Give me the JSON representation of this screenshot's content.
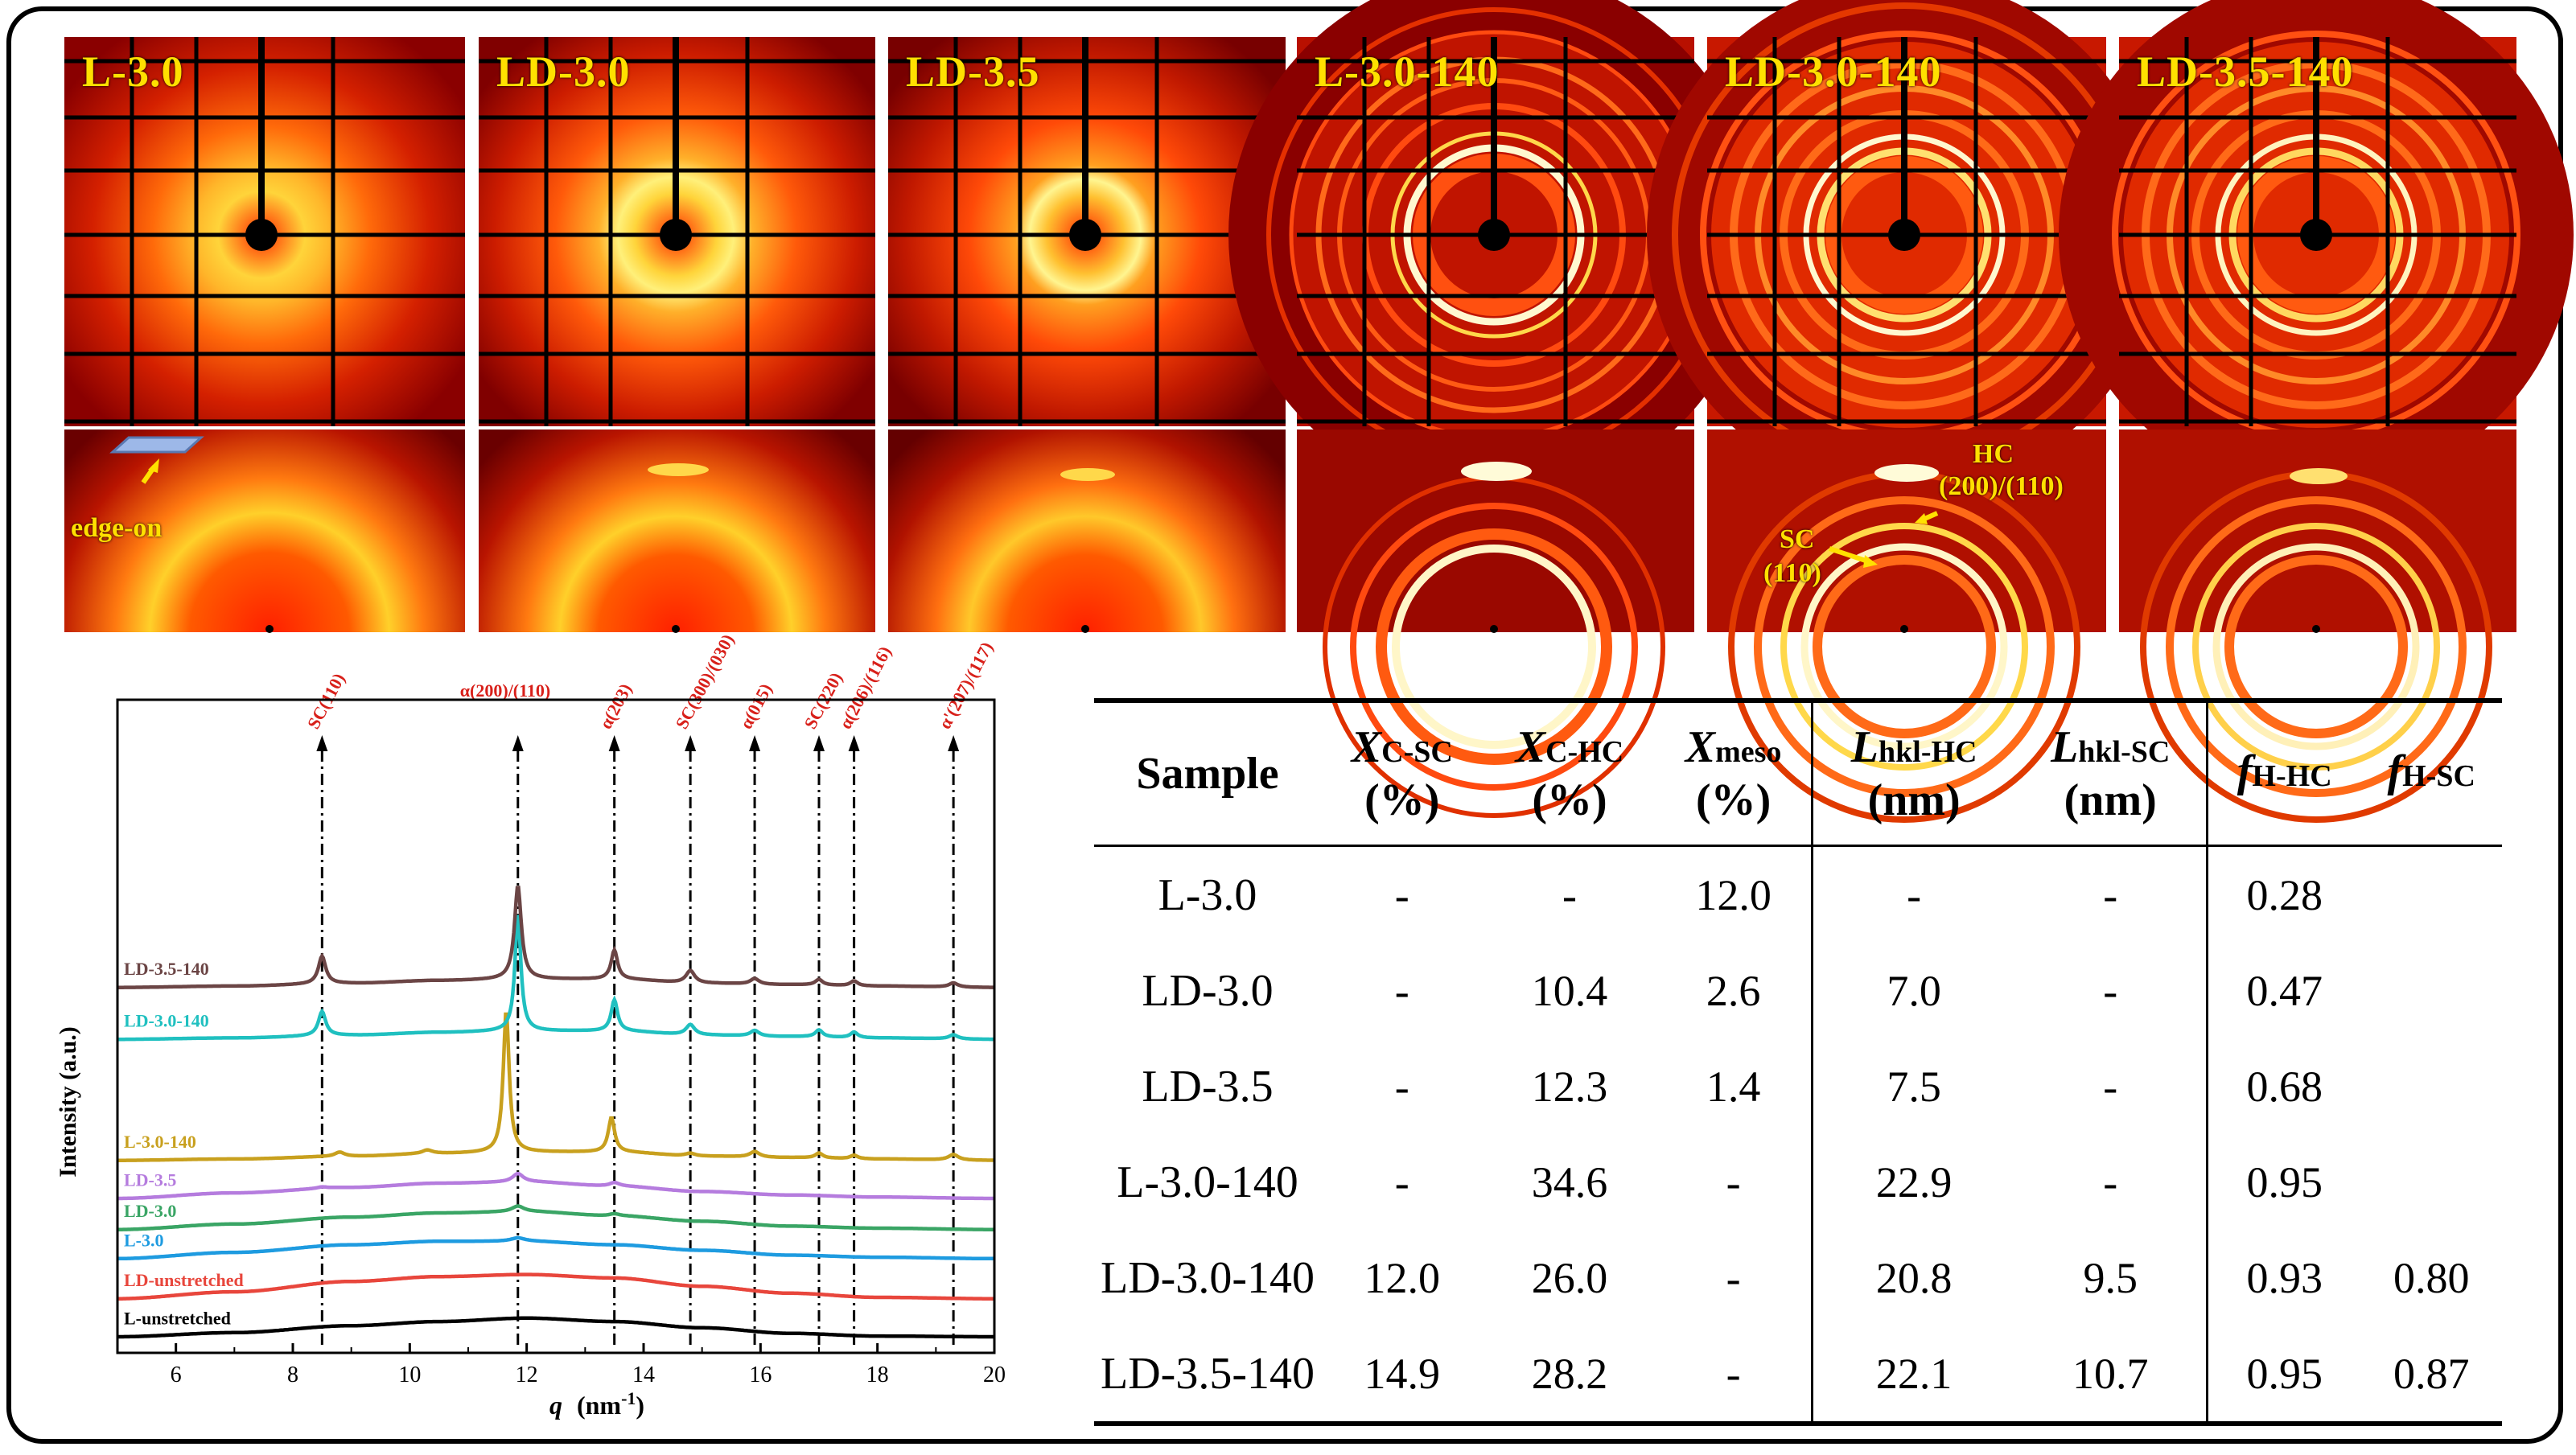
{
  "panels": [
    {
      "label": "L-3.0"
    },
    {
      "label": "LD-3.0"
    },
    {
      "label": "LD-3.5"
    },
    {
      "label": "L-3.0-140"
    },
    {
      "label": "LD-3.0-140"
    },
    {
      "label": "LD-3.5-140"
    }
  ],
  "annotations": {
    "edge_on": "edge-on",
    "hc_line1": "HC",
    "hc_line2": "(200)/(110)",
    "sc_line1": "SC",
    "sc_line2": "(110)"
  },
  "chart_data": {
    "type": "line",
    "xlabel_var": "q",
    "xlabel_unit": "(nm",
    "xlabel_exp": "-1",
    "xlabel_close": ")",
    "ylabel": "Intensity (a.u.)",
    "xlim": [
      5,
      20
    ],
    "xticks": [
      6,
      8,
      10,
      12,
      14,
      16,
      18,
      20
    ],
    "peaks": [
      {
        "q": 8.5,
        "label": "SC(110)"
      },
      {
        "q": 11.85,
        "label": "α(200)/(110)"
      },
      {
        "q": 13.5,
        "label": "α(203)"
      },
      {
        "q": 14.8,
        "label": "SC(300)/(030)"
      },
      {
        "q": 15.9,
        "label": "α(015)"
      },
      {
        "q": 17.0,
        "label": "SC(220)"
      },
      {
        "q": 17.6,
        "label": "α(206)/(116)"
      },
      {
        "q": 19.3,
        "label": "α'(207)/(117)"
      }
    ],
    "series": [
      {
        "name": "L-unstretched",
        "color": "#000000",
        "offset": 0.0,
        "baseline": [
          [
            5,
            0.0
          ],
          [
            7,
            0.06
          ],
          [
            9,
            0.16
          ],
          [
            10.5,
            0.22
          ],
          [
            12,
            0.27
          ],
          [
            13.5,
            0.22
          ],
          [
            15,
            0.13
          ],
          [
            16.5,
            0.05
          ],
          [
            18,
            0.01
          ],
          [
            20,
            0.0
          ]
        ],
        "peaks": []
      },
      {
        "name": "LD-unstretched",
        "color": "#e8463c",
        "offset": 0.55,
        "baseline": [
          [
            5,
            0.0
          ],
          [
            7,
            0.1
          ],
          [
            9,
            0.25
          ],
          [
            10.5,
            0.32
          ],
          [
            12,
            0.35
          ],
          [
            13.5,
            0.3
          ],
          [
            15,
            0.18
          ],
          [
            16.5,
            0.08
          ],
          [
            18,
            0.02
          ],
          [
            20,
            0.0
          ]
        ],
        "peaks": []
      },
      {
        "name": "L-3.0",
        "color": "#1e9be0",
        "offset": 1.13,
        "baseline": [
          [
            5,
            0.0
          ],
          [
            7,
            0.09
          ],
          [
            9,
            0.2
          ],
          [
            10.5,
            0.25
          ],
          [
            12,
            0.25
          ],
          [
            13.5,
            0.2
          ],
          [
            15,
            0.12
          ],
          [
            16.5,
            0.05
          ],
          [
            18,
            0.02
          ],
          [
            20,
            0.0
          ]
        ],
        "peaks": [
          [
            11.85,
            0.05,
            0.3
          ]
        ]
      },
      {
        "name": "LD-3.0",
        "color": "#3aa565",
        "offset": 1.55,
        "baseline": [
          [
            5,
            0.0
          ],
          [
            7,
            0.08
          ],
          [
            9,
            0.18
          ],
          [
            10.5,
            0.24
          ],
          [
            12,
            0.26
          ],
          [
            13.5,
            0.2
          ],
          [
            15,
            0.12
          ],
          [
            16.5,
            0.05
          ],
          [
            18,
            0.02
          ],
          [
            20,
            0.0
          ]
        ],
        "peaks": [
          [
            11.85,
            0.08,
            0.25
          ],
          [
            13.5,
            0.03,
            0.2
          ]
        ]
      },
      {
        "name": "LD-3.5",
        "color": "#b57cde",
        "offset": 2.0,
        "baseline": [
          [
            5,
            0.0
          ],
          [
            7,
            0.08
          ],
          [
            9,
            0.16
          ],
          [
            10.5,
            0.22
          ],
          [
            12,
            0.24
          ],
          [
            13.5,
            0.18
          ],
          [
            15,
            0.1
          ],
          [
            16.5,
            0.05
          ],
          [
            18,
            0.02
          ],
          [
            20,
            0.0
          ]
        ],
        "peaks": [
          [
            11.85,
            0.12,
            0.22
          ],
          [
            13.5,
            0.05,
            0.2
          ],
          [
            8.5,
            0.02,
            0.2
          ]
        ]
      },
      {
        "name": "L-3.0-140",
        "color": "#c8a01e",
        "offset": 2.55,
        "baseline": [
          [
            5,
            0.0
          ],
          [
            7,
            0.02
          ],
          [
            9,
            0.06
          ],
          [
            10.5,
            0.1
          ],
          [
            12,
            0.12
          ],
          [
            13.5,
            0.12
          ],
          [
            15,
            0.06
          ],
          [
            16.5,
            0.04
          ],
          [
            18,
            0.02
          ],
          [
            20,
            0.0
          ]
        ],
        "peaks": [
          [
            11.65,
            2.05,
            0.12
          ],
          [
            13.45,
            0.5,
            0.13
          ],
          [
            8.8,
            0.06,
            0.2
          ],
          [
            10.3,
            0.05,
            0.2
          ],
          [
            14.8,
            0.04,
            0.2
          ],
          [
            15.9,
            0.08,
            0.2
          ],
          [
            17.0,
            0.07,
            0.15
          ],
          [
            17.6,
            0.05,
            0.15
          ],
          [
            19.3,
            0.08,
            0.2
          ]
        ]
      },
      {
        "name": "LD-3.0-140",
        "color": "#20c0c0",
        "offset": 4.3,
        "baseline": [
          [
            5,
            0.0
          ],
          [
            7,
            0.02
          ],
          [
            9,
            0.06
          ],
          [
            10.5,
            0.1
          ],
          [
            12,
            0.12
          ],
          [
            13.5,
            0.12
          ],
          [
            15,
            0.06
          ],
          [
            16.5,
            0.04
          ],
          [
            18,
            0.02
          ],
          [
            20,
            0.0
          ]
        ],
        "peaks": [
          [
            11.85,
            1.7,
            0.12
          ],
          [
            8.5,
            0.35,
            0.15
          ],
          [
            13.5,
            0.45,
            0.13
          ],
          [
            14.8,
            0.15,
            0.18
          ],
          [
            15.9,
            0.08,
            0.18
          ],
          [
            17.0,
            0.1,
            0.15
          ],
          [
            17.6,
            0.08,
            0.15
          ],
          [
            19.3,
            0.06,
            0.18
          ]
        ]
      },
      {
        "name": "LD-3.5-140",
        "color": "#6b4545",
        "offset": 5.05,
        "baseline": [
          [
            5,
            0.0
          ],
          [
            7,
            0.02
          ],
          [
            9,
            0.06
          ],
          [
            10.5,
            0.1
          ],
          [
            12,
            0.12
          ],
          [
            13.5,
            0.12
          ],
          [
            15,
            0.06
          ],
          [
            16.5,
            0.04
          ],
          [
            18,
            0.02
          ],
          [
            20,
            0.0
          ]
        ],
        "peaks": [
          [
            11.85,
            1.35,
            0.14
          ],
          [
            8.5,
            0.4,
            0.15
          ],
          [
            13.5,
            0.42,
            0.13
          ],
          [
            14.8,
            0.18,
            0.18
          ],
          [
            15.9,
            0.08,
            0.18
          ],
          [
            17.0,
            0.08,
            0.15
          ],
          [
            17.6,
            0.07,
            0.15
          ],
          [
            19.3,
            0.06,
            0.18
          ]
        ]
      }
    ]
  },
  "table": {
    "headers": [
      {
        "main": "Sample",
        "sub": "",
        "unit": ""
      },
      {
        "main": "X",
        "sub": "C-SC",
        "unit": "(%)"
      },
      {
        "main": "X",
        "sub": "C-HC",
        "unit": "(%)"
      },
      {
        "main": "X",
        "sub": "meso",
        "unit": "(%)"
      },
      {
        "main": "L",
        "sub": "hkl-HC",
        "unit": "(nm)"
      },
      {
        "main": "L",
        "sub": "hkl-SC",
        "unit": "(nm)"
      },
      {
        "main": "f",
        "sub": "H-HC",
        "unit": ""
      },
      {
        "main": "f",
        "sub": "H-SC",
        "unit": ""
      }
    ],
    "rows": [
      [
        "L-3.0",
        "-",
        "-",
        "12.0",
        "-",
        "-",
        "0.28",
        ""
      ],
      [
        "LD-3.0",
        "-",
        "10.4",
        "2.6",
        "7.0",
        "-",
        "0.47",
        ""
      ],
      [
        "LD-3.5",
        "-",
        "12.3",
        "1.4",
        "7.5",
        "-",
        "0.68",
        ""
      ],
      [
        "L-3.0-140",
        "-",
        "34.6",
        "-",
        "22.9",
        "-",
        "0.95",
        ""
      ],
      [
        "LD-3.0-140",
        "12.0",
        "26.0",
        "-",
        "20.8",
        "9.5",
        "0.93",
        "0.80"
      ],
      [
        "LD-3.5-140",
        "14.9",
        "28.2",
        "-",
        "22.1",
        "10.7",
        "0.95",
        "0.87"
      ]
    ]
  }
}
